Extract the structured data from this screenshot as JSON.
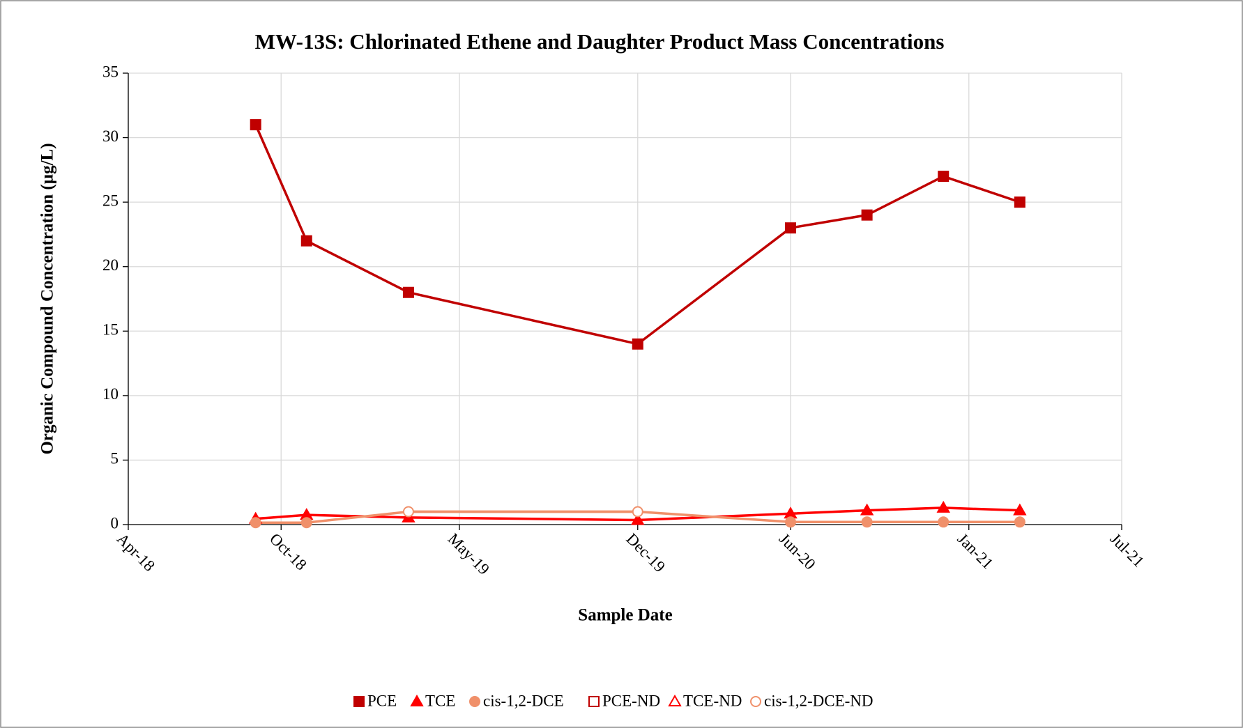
{
  "chart_data": {
    "type": "line",
    "title": "MW-13S: Chlorinated Ethene and Daughter Product Mass Concentrations",
    "x_label": "Sample Date",
    "y_label": "Organic Compound Concentration (µg/L)",
    "x": [
      "2018-09",
      "2018-11",
      "2019-03",
      "2019-12",
      "2020-06",
      "2020-09",
      "2020-12",
      "2021-03"
    ],
    "xlim": [
      "2018-04",
      "2021-07"
    ],
    "xticks": [
      {
        "value": "2018-04",
        "label": "Apr-18"
      },
      {
        "value": "2018-10",
        "label": "Oct-18"
      },
      {
        "value": "2019-05",
        "label": "May-19"
      },
      {
        "value": "2019-12",
        "label": "Dec-19"
      },
      {
        "value": "2020-06",
        "label": "Jun-20"
      },
      {
        "value": "2021-01",
        "label": "Jan-21"
      },
      {
        "value": "2021-07",
        "label": "Jul-21"
      }
    ],
    "ylim": [
      0,
      35
    ],
    "yticks": [
      0,
      5,
      10,
      15,
      20,
      25,
      30,
      35
    ],
    "grid": true,
    "legend": "bottom",
    "series": [
      {
        "name": "PCE",
        "color": "#c00000",
        "marker": "square",
        "filled": true,
        "values": [
          31,
          22,
          18,
          14,
          23,
          24,
          27,
          25
        ]
      },
      {
        "name": "TCE",
        "color": "#ff0000",
        "marker": "triangle",
        "filled": true,
        "values": [
          0.45,
          0.75,
          0.55,
          0.35,
          0.85,
          1.1,
          1.3,
          1.1
        ]
      },
      {
        "name": "cis-1,2-DCE",
        "color": "#f0906a",
        "marker": "circle",
        "filled": true,
        "line_with": "cis-1,2-DCE-ND",
        "values": [
          0.15,
          0.15,
          null,
          null,
          0.2,
          0.2,
          0.2,
          0.2
        ]
      },
      {
        "name": "PCE-ND",
        "color": "#c00000",
        "marker": "square",
        "filled": false,
        "values": [
          null,
          null,
          null,
          null,
          null,
          null,
          null,
          null
        ]
      },
      {
        "name": "TCE-ND",
        "color": "#ff0000",
        "marker": "triangle",
        "filled": false,
        "values": [
          null,
          null,
          null,
          null,
          null,
          null,
          null,
          null
        ]
      },
      {
        "name": "cis-1,2-DCE-ND",
        "color": "#f0906a",
        "marker": "circle",
        "filled": false,
        "values": [
          null,
          null,
          1,
          1,
          null,
          null,
          null,
          null
        ]
      }
    ]
  }
}
